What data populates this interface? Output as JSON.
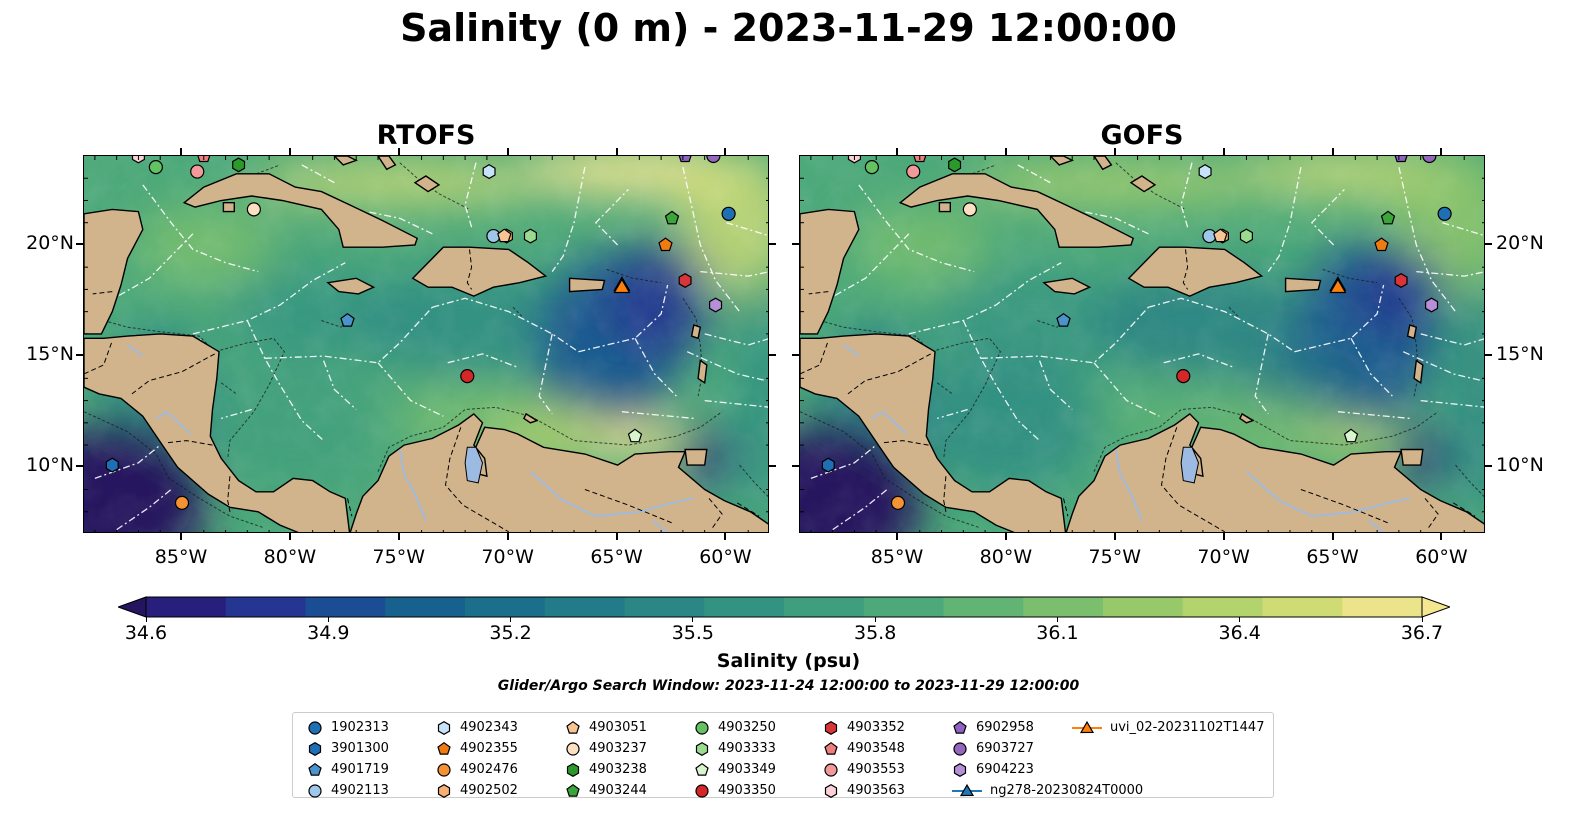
{
  "title": "Salinity (0 m) - 2023-11-29 12:00:00",
  "panels": [
    {
      "title": "RTOFS",
      "model": "rtofs"
    },
    {
      "title": "GOFS",
      "model": "gofs"
    }
  ],
  "map": {
    "lon_range": [
      -89.5,
      -58.0
    ],
    "lat_range": [
      7.0,
      24.0
    ],
    "lon_ticks": [
      {
        "value": -85,
        "label": "85°W"
      },
      {
        "value": -80,
        "label": "80°W"
      },
      {
        "value": -75,
        "label": "75°W"
      },
      {
        "value": -70,
        "label": "70°W"
      },
      {
        "value": -65,
        "label": "65°W"
      },
      {
        "value": -60,
        "label": "60°W"
      }
    ],
    "lat_ticks": [
      {
        "value": 10,
        "label": "10°N"
      },
      {
        "value": 15,
        "label": "15°N"
      },
      {
        "value": 20,
        "label": "20°N"
      }
    ],
    "land_color": "#d2b48c",
    "lake_color": "#9dbbe2"
  },
  "colorbar": {
    "label": "Salinity (psu)",
    "min": 34.6,
    "max": 36.7,
    "ticks": [
      "34.6",
      "34.9",
      "35.2",
      "35.5",
      "35.8",
      "36.1",
      "36.4",
      "36.7"
    ],
    "colors": [
      "#25145e",
      "#281e7c",
      "#253592",
      "#1a4d94",
      "#17618e",
      "#1b6f8a",
      "#227b88",
      "#2a8786",
      "#339383",
      "#3e9e7e",
      "#4da97a",
      "#62b474",
      "#7bbf6e",
      "#97c96a",
      "#b3d36c",
      "#cfdc75",
      "#ebe48a",
      "#f5e78f"
    ]
  },
  "search_window": "Glider/Argo Search Window: 2023-11-24 12:00:00 to 2023-11-29 12:00:00",
  "platforms": [
    {
      "name": "1902313",
      "marker": "circle",
      "color": "#1f6fb4",
      "lon": -59.9,
      "lat": 21.4
    },
    {
      "name": "3901300",
      "marker": "hexagon",
      "color": "#1f6fb4",
      "lon": -88.2,
      "lat": 10.1
    },
    {
      "name": "4901719",
      "marker": "pentagon",
      "color": "#4c93cc",
      "lon": -77.4,
      "lat": 16.6
    },
    {
      "name": "4902113",
      "marker": "circle",
      "color": "#9ec7ea",
      "lon": -70.7,
      "lat": 20.4
    },
    {
      "name": "4902343",
      "marker": "hexagon",
      "color": "#c6e3fa",
      "lon": -70.9,
      "lat": 23.3
    },
    {
      "name": "4902355",
      "marker": "pentagon",
      "color": "#f07b12",
      "lon": -62.8,
      "lat": 20.0
    },
    {
      "name": "4902476",
      "marker": "circle",
      "color": "#f59234",
      "lon": -85.0,
      "lat": 8.4
    },
    {
      "name": "4902502",
      "marker": "hexagon",
      "color": "#f7b072",
      "lon": -70.1,
      "lat": 20.4
    },
    {
      "name": "4903051",
      "marker": "pentagon",
      "color": "#f8c493",
      "lon": -70.2,
      "lat": 20.4
    },
    {
      "name": "4903237",
      "marker": "circle",
      "color": "#fbe0c2",
      "lon": -81.7,
      "lat": 21.6
    },
    {
      "name": "4903238",
      "marker": "hexagon",
      "color": "#2b9a2b",
      "lon": -82.4,
      "lat": 23.6
    },
    {
      "name": "4903244",
      "marker": "pentagon",
      "color": "#3aa53a",
      "lon": -62.5,
      "lat": 21.2
    },
    {
      "name": "4903250",
      "marker": "circle",
      "color": "#65c263",
      "lon": -86.2,
      "lat": 23.5
    },
    {
      "name": "4903333",
      "marker": "hexagon",
      "color": "#9bdb8f",
      "lon": -69.0,
      "lat": 20.4
    },
    {
      "name": "4903349",
      "marker": "pentagon",
      "color": "#d8f5cd",
      "lon": -64.2,
      "lat": 11.4
    },
    {
      "name": "4903350",
      "marker": "circle",
      "color": "#d62728",
      "lon": -71.9,
      "lat": 14.1
    },
    {
      "name": "4903352",
      "marker": "hexagon",
      "color": "#d9343a",
      "lon": -61.9,
      "lat": 18.4
    },
    {
      "name": "4903548",
      "marker": "pentagon",
      "color": "#ee7f7f",
      "lon": -84.0,
      "lat": 24.0
    },
    {
      "name": "4903553",
      "marker": "circle",
      "color": "#f29a9a",
      "lon": -84.3,
      "lat": 23.3
    },
    {
      "name": "4903563",
      "marker": "hexagon",
      "color": "#fbd0d6",
      "lon": -87.0,
      "lat": 24.0
    },
    {
      "name": "6902958",
      "marker": "pentagon",
      "color": "#8e62c4",
      "lon": -61.9,
      "lat": 24.0
    },
    {
      "name": "6903727",
      "marker": "circle",
      "color": "#9467bd",
      "lon": -60.6,
      "lat": 24.0
    },
    {
      "name": "6904223",
      "marker": "hexagon",
      "color": "#b58fd8",
      "lon": -60.5,
      "lat": 17.3
    }
  ],
  "gliders": [
    {
      "name": "ng278-20230824T0000",
      "color": "#1f77b4",
      "lon": -64.8,
      "lat": 18.2
    },
    {
      "name": "uvi_02-20231102T1447",
      "color": "#ff7f0e",
      "lon": -64.8,
      "lat": 18.1
    }
  ]
}
